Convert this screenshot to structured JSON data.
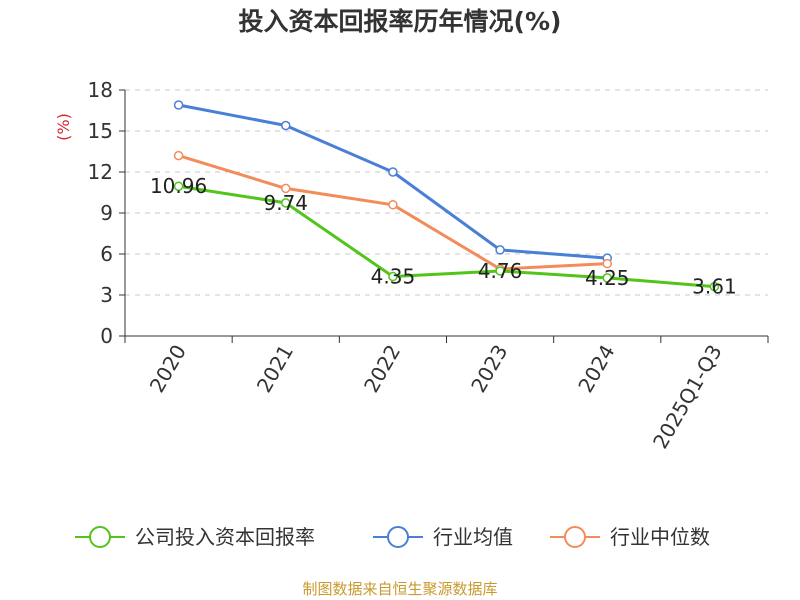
{
  "chart_data": {
    "type": "line",
    "title": "投入资本回报率历年情况(%)",
    "ylabel": "(%)",
    "xlabel": "",
    "categories": [
      "2020",
      "2021",
      "2022",
      "2023",
      "2024",
      "2025Q1-Q3"
    ],
    "y_ticks": [
      0,
      3,
      6,
      9,
      12,
      15,
      18
    ],
    "ylim": [
      0,
      18
    ],
    "grid": true,
    "legend_position": "bottom",
    "series": [
      {
        "name": "公司投入资本回报率",
        "color": "#52c41a",
        "values": [
          10.96,
          9.74,
          4.35,
          4.76,
          4.25,
          3.61
        ],
        "show_labels": true
      },
      {
        "name": "行业均值",
        "color": "#4a7fd6",
        "values": [
          16.9,
          15.4,
          12.0,
          6.3,
          5.7,
          null
        ],
        "show_labels": false
      },
      {
        "name": "行业中位数",
        "color": "#f28c5a",
        "values": [
          13.2,
          10.8,
          9.6,
          4.9,
          5.3,
          null
        ],
        "show_labels": false
      }
    ]
  },
  "source": "制图数据来自恒生聚源数据库"
}
